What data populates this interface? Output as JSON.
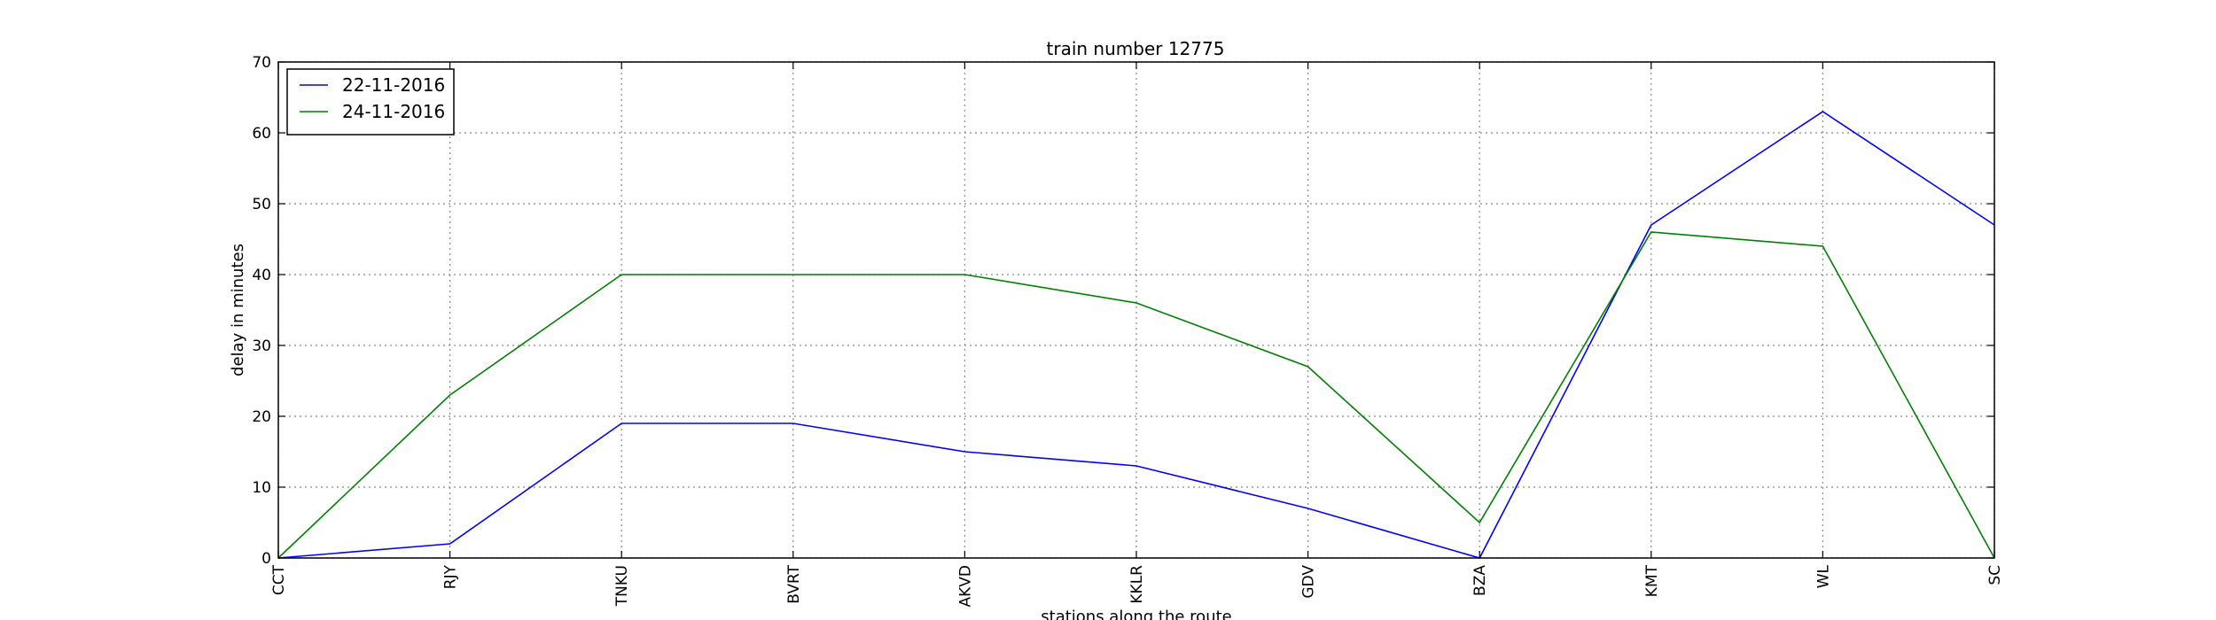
{
  "chart_data": {
    "type": "line",
    "title": "train number 12775",
    "xlabel": "stations along the route",
    "ylabel": "delay in minutes",
    "categories": [
      "CCT",
      "RJY",
      "TNKU",
      "BVRT",
      "AKVD",
      "KKLR",
      "GDV",
      "BZA",
      "KMT",
      "WL",
      "SC"
    ],
    "ylim": [
      0,
      70
    ],
    "yticks": [
      0,
      10,
      20,
      30,
      40,
      50,
      60,
      70
    ],
    "grid": true,
    "legend_position": "top-left",
    "series": [
      {
        "name": "22-11-2016",
        "color": "#0000ff",
        "values": [
          0,
          2,
          19,
          19,
          15,
          13,
          7,
          0,
          47,
          63,
          47
        ]
      },
      {
        "name": "24-11-2016",
        "color": "#008000",
        "values": [
          0,
          23,
          40,
          40,
          40,
          36,
          27,
          5,
          46,
          44,
          0
        ]
      }
    ]
  }
}
